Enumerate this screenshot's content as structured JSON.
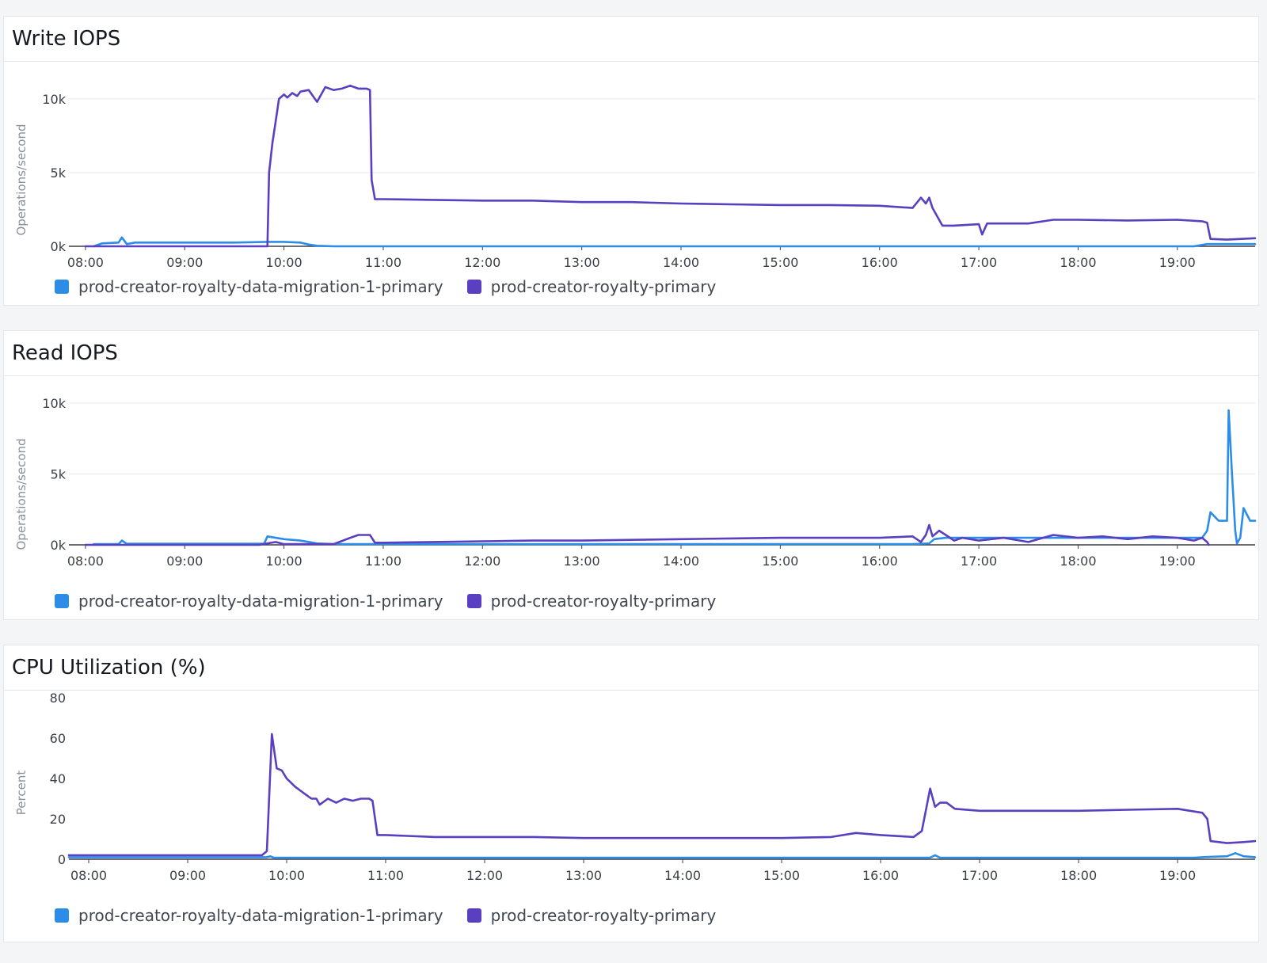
{
  "colors": {
    "migration": "#2b8de8",
    "primary": "#5a3fc0",
    "grid": "#e6e8eb",
    "axis": "#3b3f45"
  },
  "panels": [
    {
      "title": "Write IOPS",
      "legend": [
        "prod-creator-royalty-data-migration-1-primary",
        "prod-creator-royalty-primary"
      ]
    },
    {
      "title": "Read IOPS",
      "legend": [
        "prod-creator-royalty-data-migration-1-primary",
        "prod-creator-royalty-primary"
      ]
    },
    {
      "title": "CPU Utilization (%)",
      "legend": [
        "prod-creator-royalty-data-migration-1-primary",
        "prod-creator-royalty-primary"
      ]
    }
  ],
  "chart_data": [
    {
      "type": "line",
      "title": "Write IOPS",
      "ylabel": "Operations/second",
      "xlabel": "",
      "x_ticks": [
        "08:00",
        "09:00",
        "10:00",
        "11:00",
        "12:00",
        "13:00",
        "14:00",
        "15:00",
        "16:00",
        "17:00",
        "18:00",
        "19:00"
      ],
      "y_ticks": [
        "0k",
        "5k",
        "10k"
      ],
      "y_tick_values": [
        0,
        5000,
        10000
      ],
      "ylim": [
        0,
        11500
      ],
      "xlim": [
        "07:50",
        "19:47"
      ],
      "grid": true,
      "legend_position": "bottom-left",
      "series": [
        {
          "name": "prod-creator-royalty-data-migration-1-primary",
          "x": [
            "08:05",
            "08:10",
            "08:20",
            "08:22",
            "08:25",
            "08:30",
            "08:40",
            "09:00",
            "09:30",
            "09:50",
            "10:00",
            "10:10",
            "10:15",
            "10:20",
            "10:30",
            "10:40",
            "11:00",
            "16:30",
            "17:00",
            "19:10",
            "19:18",
            "19:30",
            "19:47"
          ],
          "values": [
            0,
            200,
            250,
            600,
            150,
            250,
            250,
            250,
            250,
            300,
            300,
            250,
            120,
            40,
            0,
            0,
            0,
            0,
            0,
            0,
            150,
            150,
            150
          ]
        },
        {
          "name": "prod-creator-royalty-primary",
          "x": [
            "08:00",
            "09:50",
            "09:51",
            "09:53",
            "09:55",
            "09:57",
            "10:00",
            "10:02",
            "10:05",
            "10:08",
            "10:10",
            "10:15",
            "10:20",
            "10:25",
            "10:30",
            "10:35",
            "10:40",
            "10:45",
            "10:50",
            "10:52",
            "10:53",
            "10:55",
            "10:58",
            "11:00",
            "11:30",
            "12:00",
            "12:30",
            "13:00",
            "13:30",
            "14:00",
            "14:30",
            "15:00",
            "15:30",
            "16:00",
            "16:20",
            "16:25",
            "16:28",
            "16:30",
            "16:32",
            "16:38",
            "16:45",
            "17:00",
            "17:02",
            "17:05",
            "17:30",
            "17:45",
            "18:00",
            "18:30",
            "19:00",
            "19:15",
            "19:18",
            "19:20",
            "19:30",
            "19:47"
          ],
          "values": [
            0,
            0,
            5000,
            7000,
            8500,
            10000,
            10300,
            10100,
            10400,
            10200,
            10500,
            10600,
            9800,
            10800,
            10600,
            10700,
            10900,
            10700,
            10700,
            10600,
            4500,
            3200,
            3200,
            3200,
            3150,
            3100,
            3100,
            3000,
            3000,
            2900,
            2850,
            2800,
            2800,
            2750,
            2600,
            3300,
            2900,
            3300,
            2600,
            1400,
            1400,
            1500,
            800,
            1550,
            1550,
            1800,
            1800,
            1750,
            1800,
            1700,
            1600,
            500,
            450,
            550
          ]
        }
      ]
    },
    {
      "type": "line",
      "title": "Read IOPS",
      "ylabel": "Operations/second",
      "xlabel": "",
      "x_ticks": [
        "08:00",
        "09:00",
        "10:00",
        "11:00",
        "12:00",
        "13:00",
        "14:00",
        "15:00",
        "16:00",
        "17:00",
        "18:00",
        "19:00"
      ],
      "y_ticks": [
        "0k",
        "5k",
        "10k"
      ],
      "y_tick_values": [
        0,
        5000,
        10000
      ],
      "ylim": [
        0,
        10000
      ],
      "xlim": [
        "07:50",
        "19:47"
      ],
      "grid": true,
      "legend_position": "bottom-left",
      "series": [
        {
          "name": "prod-creator-royalty-data-migration-1-primary",
          "x": [
            "08:05",
            "08:20",
            "08:22",
            "08:25",
            "08:40",
            "09:00",
            "09:30",
            "09:48",
            "09:50",
            "10:00",
            "10:10",
            "10:20",
            "10:30",
            "11:00",
            "12:00",
            "13:00",
            "14:00",
            "15:00",
            "16:00",
            "16:20",
            "16:30",
            "16:33",
            "16:40",
            "16:45",
            "17:00",
            "17:30",
            "18:00",
            "18:30",
            "19:00",
            "19:15",
            "19:18",
            "19:20",
            "19:25",
            "19:30",
            "19:31",
            "19:33",
            "19:35",
            "19:36",
            "19:38",
            "19:40",
            "19:44",
            "19:47"
          ],
          "values": [
            50,
            50,
            300,
            80,
            80,
            80,
            80,
            80,
            600,
            400,
            300,
            100,
            50,
            50,
            50,
            50,
            50,
            50,
            50,
            50,
            100,
            400,
            500,
            500,
            500,
            500,
            500,
            500,
            500,
            500,
            1000,
            2300,
            1700,
            1700,
            9500,
            5000,
            1000,
            100,
            500,
            2600,
            1700,
            1700
          ]
        },
        {
          "name": "prod-creator-royalty-primary",
          "x": [
            "08:00",
            "09:45",
            "09:50",
            "09:55",
            "10:00",
            "10:30",
            "10:40",
            "10:45",
            "10:52",
            "10:55",
            "11:00",
            "11:30",
            "12:00",
            "12:30",
            "13:00",
            "13:30",
            "14:00",
            "14:30",
            "15:00",
            "15:30",
            "16:00",
            "16:20",
            "16:25",
            "16:28",
            "16:30",
            "16:32",
            "16:36",
            "16:40",
            "16:45",
            "16:50",
            "17:00",
            "17:15",
            "17:30",
            "17:45",
            "18:00",
            "18:15",
            "18:30",
            "18:45",
            "19:00",
            "19:10",
            "19:15",
            "19:18",
            "19:19"
          ],
          "values": [
            0,
            0,
            100,
            200,
            50,
            50,
            500,
            700,
            700,
            150,
            150,
            200,
            250,
            300,
            300,
            350,
            400,
            450,
            500,
            500,
            500,
            600,
            200,
            700,
            1400,
            600,
            1000,
            700,
            300,
            500,
            300,
            500,
            200,
            700,
            500,
            600,
            400,
            600,
            500,
            300,
            500,
            200,
            0
          ]
        }
      ]
    },
    {
      "type": "line",
      "title": "CPU Utilization (%)",
      "ylabel": "Percent",
      "xlabel": "",
      "x_ticks": [
        "08:00",
        "09:00",
        "10:00",
        "11:00",
        "12:00",
        "13:00",
        "14:00",
        "15:00",
        "16:00",
        "17:00",
        "18:00",
        "19:00"
      ],
      "y_ticks": [
        "0",
        "20",
        "40",
        "60",
        "80"
      ],
      "y_tick_values": [
        0,
        20,
        40,
        60,
        80
      ],
      "ylim": [
        0,
        80
      ],
      "xlim": [
        "07:48",
        "19:47"
      ],
      "grid": false,
      "legend_position": "bottom-left",
      "series": [
        {
          "name": "prod-creator-royalty-data-migration-1-primary",
          "x": [
            "07:48",
            "09:48",
            "09:50",
            "09:52",
            "10:00",
            "16:30",
            "16:33",
            "16:36",
            "16:45",
            "19:10",
            "19:20",
            "19:30",
            "19:35",
            "19:40",
            "19:47"
          ],
          "values": [
            1,
            1,
            1.5,
            0.8,
            0.8,
            0.8,
            2,
            0.8,
            0.8,
            0.8,
            1.2,
            1.5,
            3,
            1.5,
            1
          ]
        },
        {
          "name": "prod-creator-royalty-primary",
          "x": [
            "07:48",
            "09:45",
            "09:48",
            "09:51",
            "09:54",
            "09:57",
            "10:00",
            "10:05",
            "10:10",
            "10:15",
            "10:18",
            "10:20",
            "10:25",
            "10:30",
            "10:35",
            "10:40",
            "10:45",
            "10:50",
            "10:52",
            "10:55",
            "11:00",
            "11:30",
            "12:00",
            "12:30",
            "13:00",
            "13:30",
            "14:00",
            "14:30",
            "15:00",
            "15:30",
            "15:45",
            "16:00",
            "16:20",
            "16:25",
            "16:30",
            "16:33",
            "16:36",
            "16:40",
            "16:45",
            "17:00",
            "17:30",
            "18:00",
            "18:30",
            "19:00",
            "19:15",
            "19:18",
            "19:20",
            "19:30",
            "19:40",
            "19:47"
          ],
          "values": [
            2,
            2,
            4,
            62,
            45,
            44,
            40,
            36,
            33,
            30,
            30,
            27,
            30,
            28,
            30,
            29,
            30,
            30,
            29,
            12,
            12,
            11,
            11,
            11,
            10.5,
            10.5,
            10.5,
            10.5,
            10.5,
            11,
            13,
            12,
            11,
            14,
            35,
            26,
            28,
            28,
            25,
            24,
            24,
            24,
            24.5,
            25,
            23,
            20,
            9,
            8,
            8.5,
            9
          ]
        }
      ]
    }
  ]
}
